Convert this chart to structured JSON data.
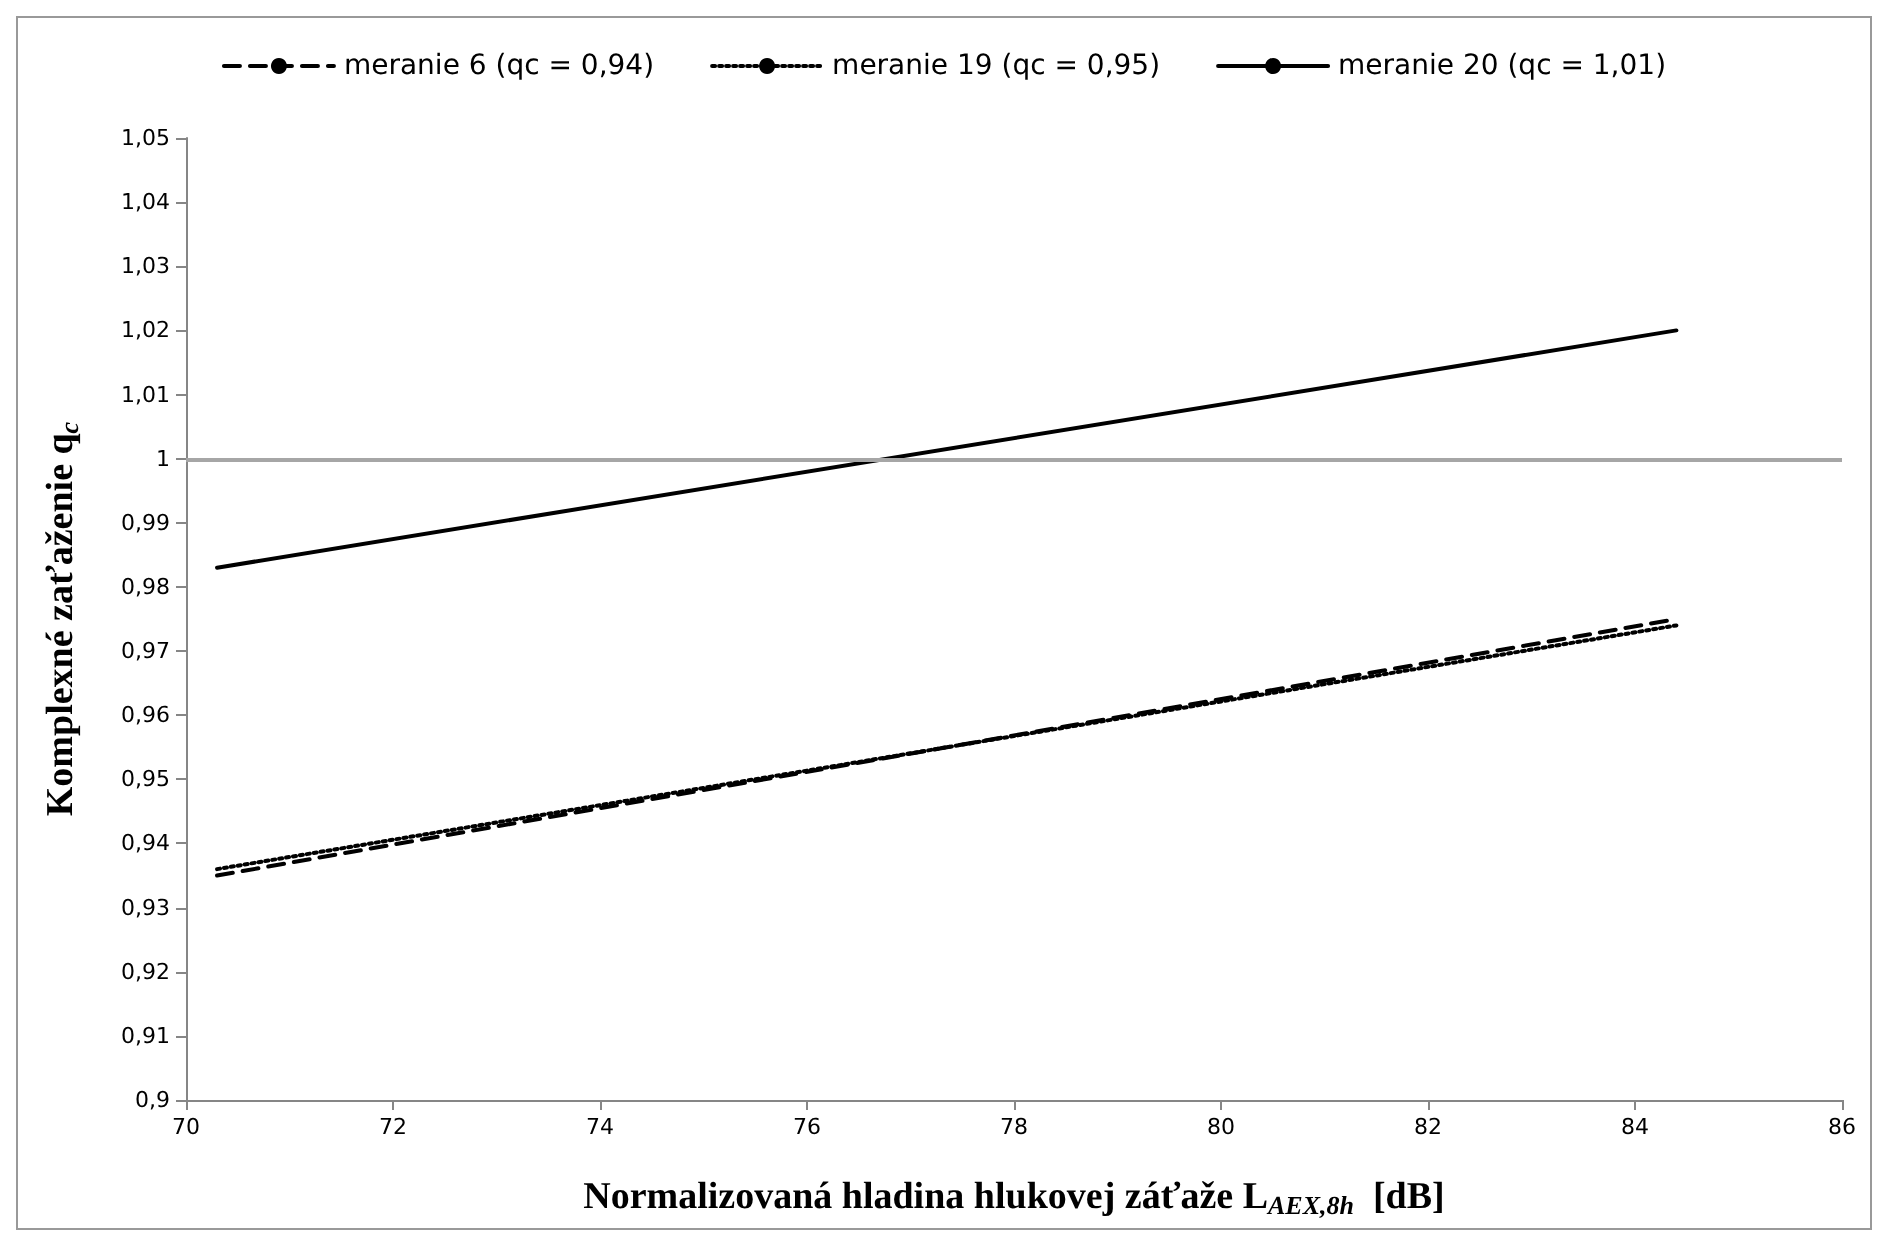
{
  "chart_data": {
    "type": "line",
    "xlabel": "Normalizovaná hladina hlukovej záťaže L$_{AEX,8h}$  [dB]",
    "ylabel": "Komplexné zaťaženie q$_{c}$",
    "xlim": [
      70,
      86
    ],
    "xticks": [
      70,
      72,
      74,
      76,
      78,
      80,
      82,
      84,
      86
    ],
    "ylim": [
      0.9,
      1.05
    ],
    "yticks": [
      {
        "value": 0.9,
        "label": "0,9"
      },
      {
        "value": 0.91,
        "label": "0,91"
      },
      {
        "value": 0.92,
        "label": "0,92"
      },
      {
        "value": 0.93,
        "label": "0,93"
      },
      {
        "value": 0.94,
        "label": "0,94"
      },
      {
        "value": 0.95,
        "label": "0,95"
      },
      {
        "value": 0.96,
        "label": "0,96"
      },
      {
        "value": 0.97,
        "label": "0,97"
      },
      {
        "value": 0.98,
        "label": "0,98"
      },
      {
        "value": 0.99,
        "label": "0,99"
      },
      {
        "value": 1,
        "label": "1"
      },
      {
        "value": 1.01,
        "label": "1,01"
      },
      {
        "value": 1.02,
        "label": "1,02"
      },
      {
        "value": 1.03,
        "label": "1,03"
      },
      {
        "value": 1.04,
        "label": "1,04"
      },
      {
        "value": 1.05,
        "label": "1,05"
      }
    ],
    "x": [
      70.3,
      84.4
    ],
    "series": [
      {
        "name": "meranie 6 (qc = 0,94)",
        "color": "#000000",
        "line_style": "dashed",
        "values": [
          0.935,
          0.975
        ]
      },
      {
        "name": "meranie 19 (qc = 0,95)",
        "color": "#000000",
        "line_style": "dotted",
        "values": [
          0.936,
          0.974
        ]
      },
      {
        "name": "meranie 20 (qc = 1,01)",
        "color": "#000000",
        "line_style": "solid",
        "values": [
          0.983,
          1.02
        ]
      }
    ],
    "ref_lines": [
      {
        "axis": "y",
        "value": 1,
        "color": "#a6a6a6"
      }
    ],
    "grid": false,
    "legend": "top",
    "marker": "none"
  }
}
